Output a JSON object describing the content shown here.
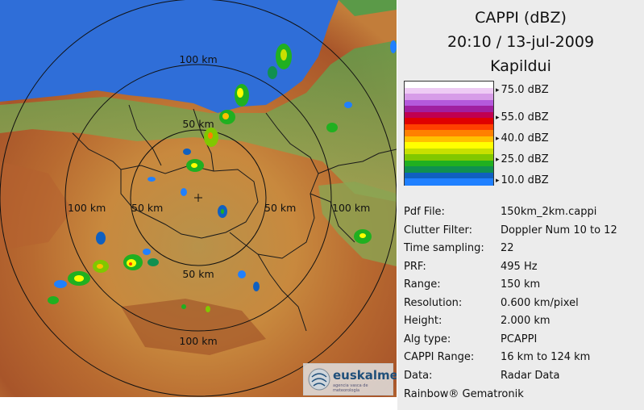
{
  "header": {
    "title": "CAPPI (dBZ)",
    "datetime": "20:10 / 13-jul-2009",
    "station": "Kapildui"
  },
  "legend": {
    "labels": [
      "75.0 dBZ",
      "55.0 dBZ",
      "40.0 dBZ",
      "25.0 dBZ",
      "10.0 dBZ"
    ],
    "colors": [
      "#ffffff",
      "#eecbf4",
      "#d79ce8",
      "#b45adc",
      "#a020a0",
      "#c00050",
      "#e00000",
      "#ff4000",
      "#ff8000",
      "#ffc000",
      "#ffff00",
      "#c8e000",
      "#80c800",
      "#20b020",
      "#109050",
      "#1060c0",
      "#2080ff"
    ]
  },
  "map": {
    "ring_labels": [
      "100 km",
      "50 km",
      "100 km",
      "50 km",
      "50 km",
      "100 km",
      "50 km",
      "100 km"
    ],
    "logo_text": "euskalmet",
    "logo_subtext": "agencia vasca de meteorología"
  },
  "info": [
    {
      "key": "Pdf File:",
      "value": "150km_2km.cappi"
    },
    {
      "key": "Clutter Filter:",
      "value": "Doppler Num 10 to 12"
    },
    {
      "key": "Time sampling:",
      "value": "22"
    },
    {
      "key": "PRF:",
      "value": "495 Hz"
    },
    {
      "key": "Range:",
      "value": "150 km"
    },
    {
      "key": "Resolution:",
      "value": "0.600 km/pixel"
    },
    {
      "key": "Height:",
      "value": "2.000 km"
    },
    {
      "key": "Alg type:",
      "value": "PCAPPI"
    },
    {
      "key": "CAPPI Range:",
      "value": "16 km to 124 km"
    },
    {
      "key": "Data:",
      "value": "Radar Data"
    }
  ],
  "credit": "Rainbow® Gematronik",
  "colors": {
    "sea": "#2f6ed8",
    "land_low": "#7ba85a",
    "land_mid": "#c88a48",
    "land_high": "#a85a30",
    "panel_bg": "#ececec"
  }
}
